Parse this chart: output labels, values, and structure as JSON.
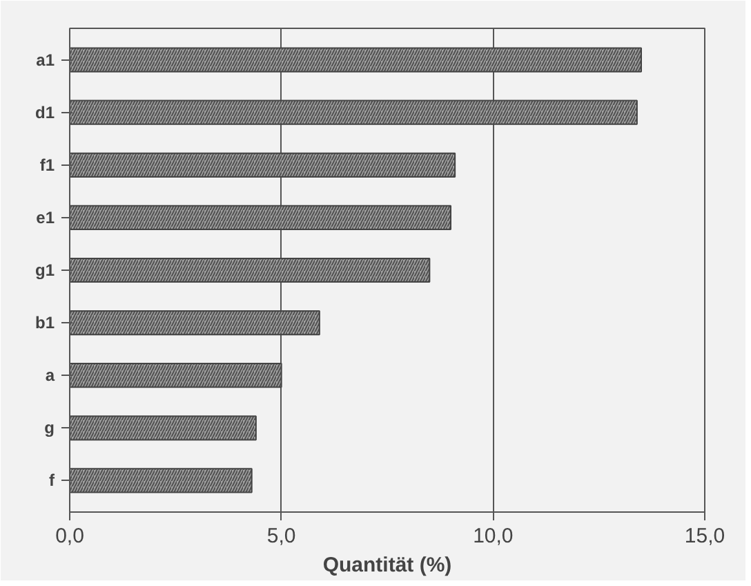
{
  "chart_data": {
    "type": "bar",
    "orientation": "horizontal",
    "xlabel": "Quantität (%)",
    "categories": [
      "a1",
      "d1",
      "f1",
      "e1",
      "g1",
      "b1",
      "a",
      "g",
      "f"
    ],
    "values": [
      13.5,
      13.4,
      9.1,
      9.0,
      8.5,
      5.9,
      5.0,
      4.4,
      4.3
    ],
    "color": "#a0a0a0",
    "xlim": [
      0,
      15
    ],
    "xticks": [
      {
        "value": 0,
        "label": "0,0"
      },
      {
        "value": 5,
        "label": "5,0"
      },
      {
        "value": 10,
        "label": "10,0"
      },
      {
        "value": 15,
        "label": "15,0"
      }
    ],
    "grid": "x"
  }
}
